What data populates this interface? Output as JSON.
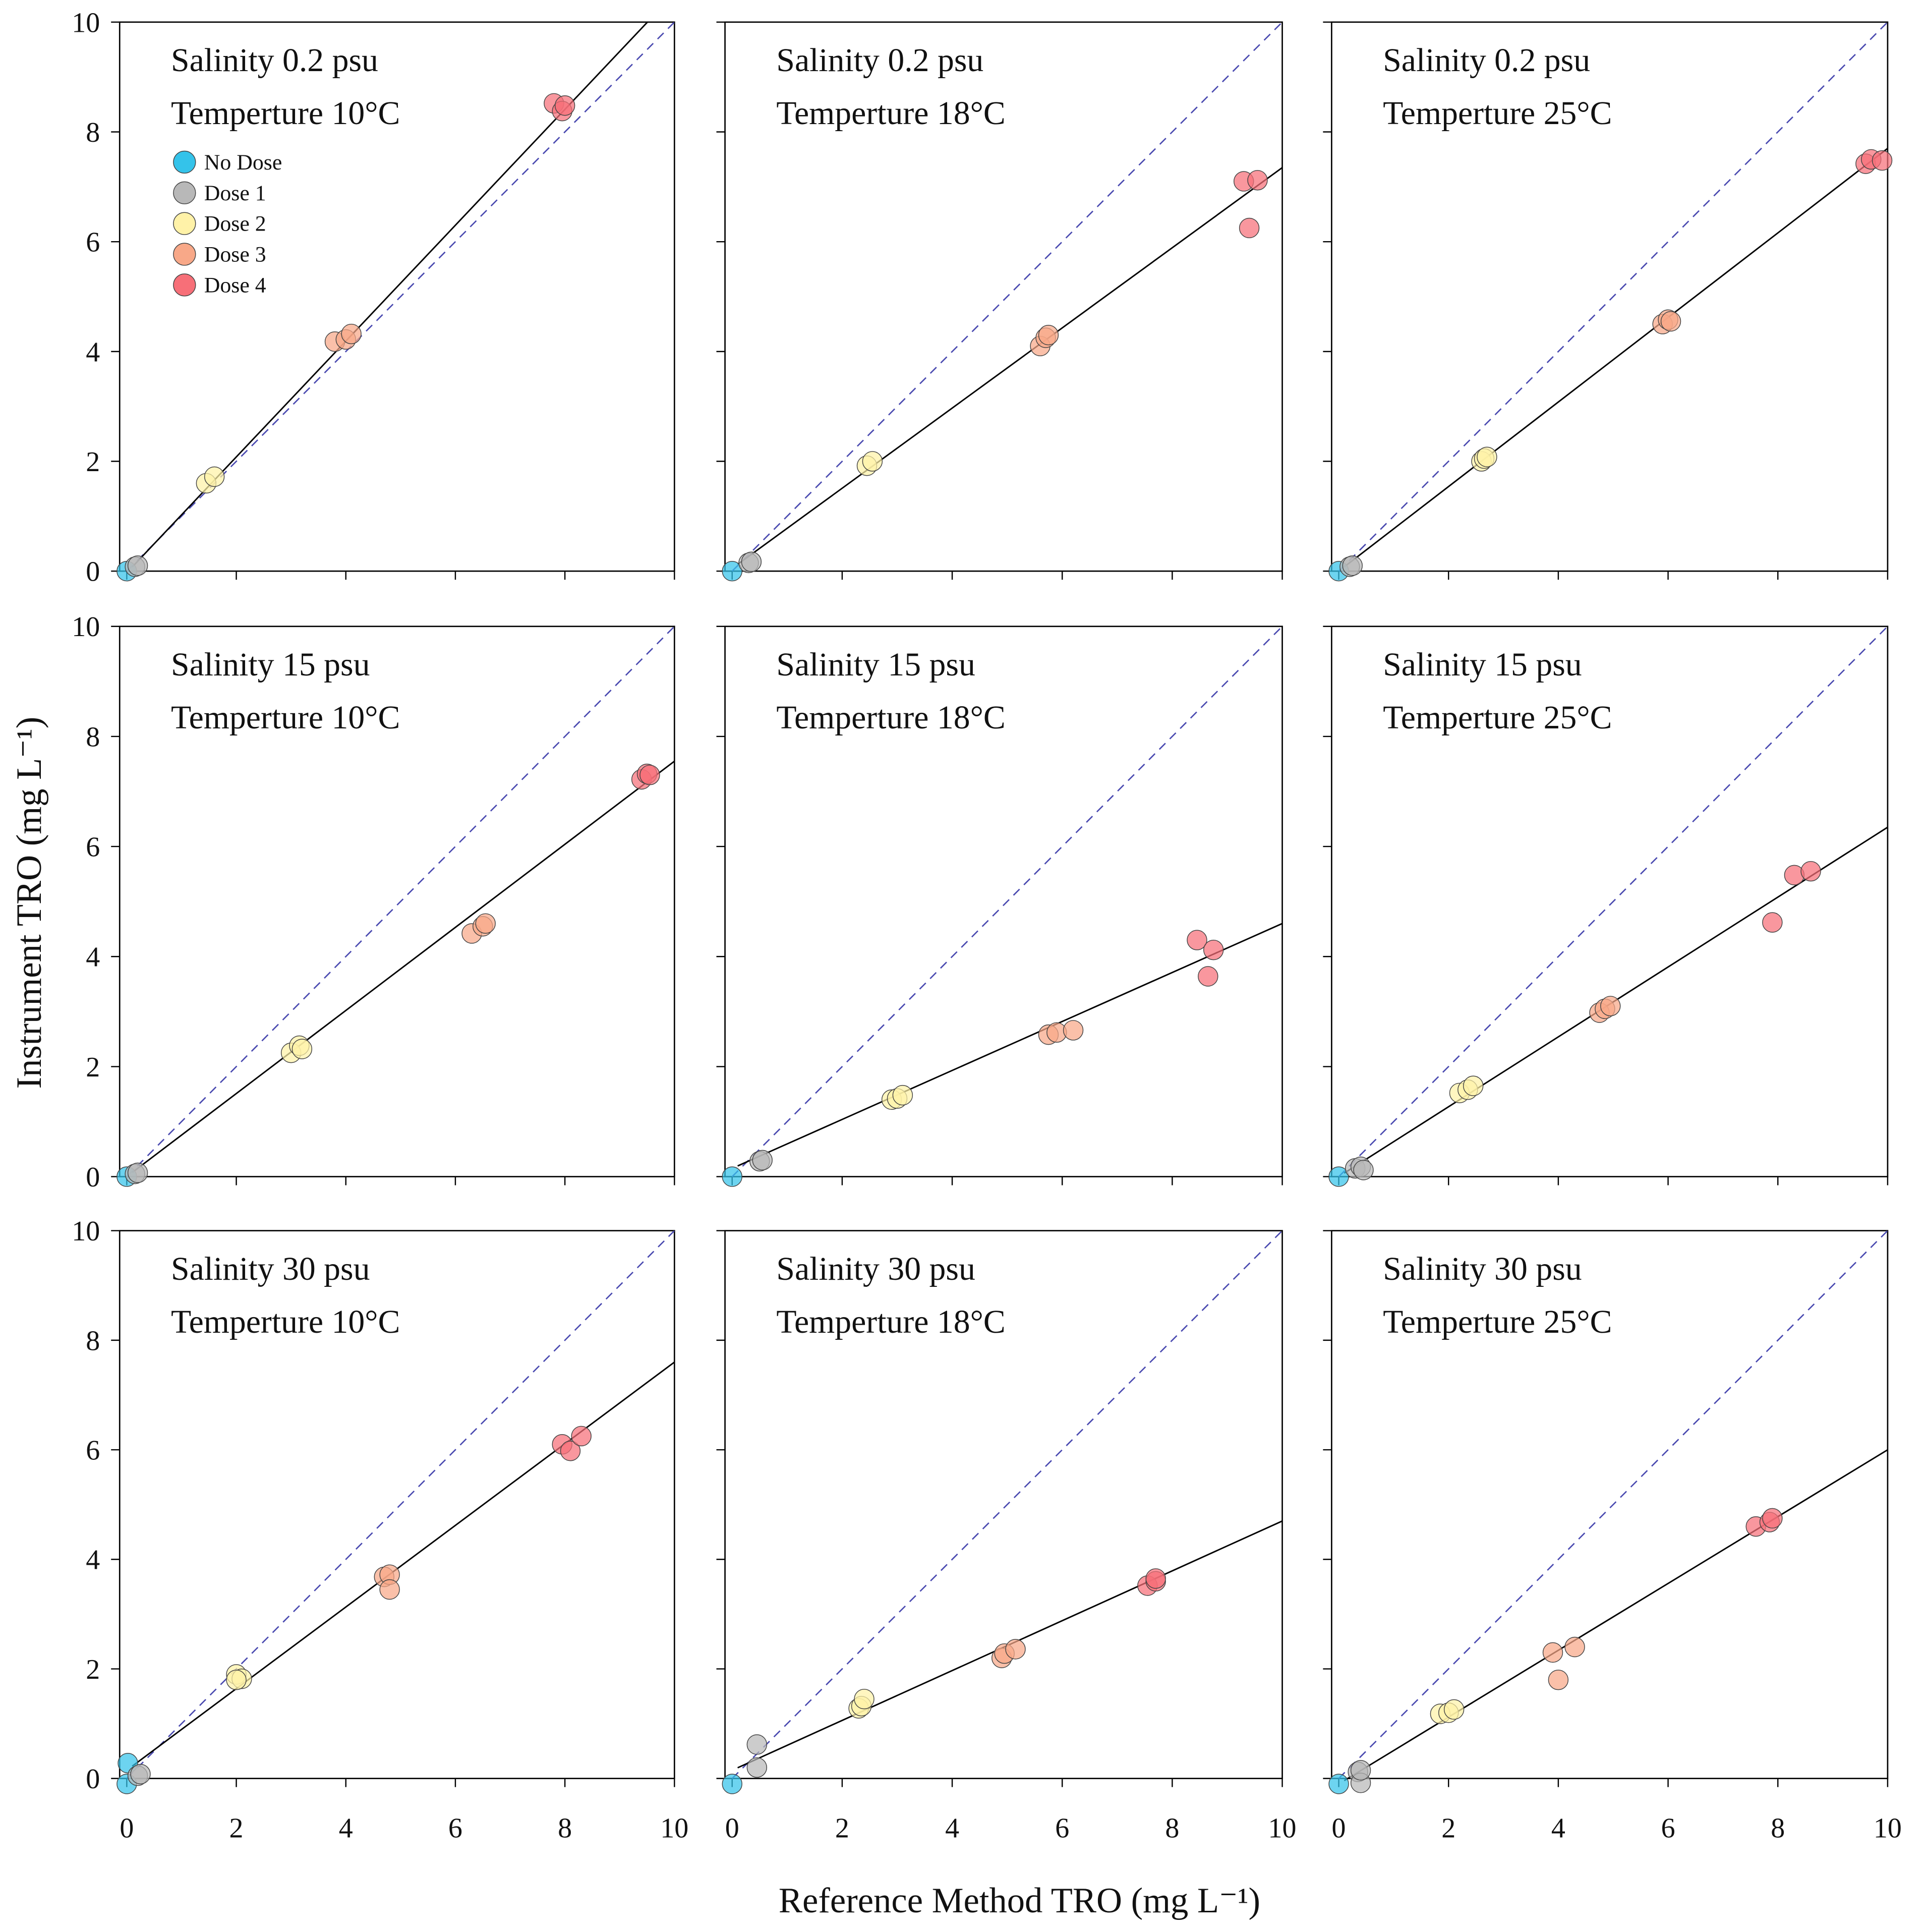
{
  "chart_data": {
    "type": "scatter",
    "xlabel": "Reference Method TRO (mg L⁻¹)",
    "ylabel": "Instrument TRO (mg L⁻¹)",
    "xlim": [
      0,
      10
    ],
    "ylim": [
      0,
      10
    ],
    "xticks": [
      "0",
      "2",
      "4",
      "6",
      "8",
      "10"
    ],
    "yticks": [
      "0",
      "2",
      "4",
      "6",
      "8",
      "10"
    ],
    "grid": false,
    "legend_placement": "top-left of first panel",
    "legend": [
      {
        "key": "nodose",
        "label": "No Dose",
        "color": "#34c3ea"
      },
      {
        "key": "dose1",
        "label": "Dose 1",
        "color": "#b8b8b8"
      },
      {
        "key": "dose2",
        "label": "Dose 2",
        "color": "#fff2a8"
      },
      {
        "key": "dose3",
        "label": "Dose 3",
        "color": "#f8a888"
      },
      {
        "key": "dose4",
        "label": "Dose 4",
        "color": "#f76f78"
      }
    ],
    "reference_line": {
      "style": "dashed",
      "slope": 1,
      "intercept": 0,
      "color": "#4a4ab0"
    },
    "panels": [
      {
        "salinity": "Salinity 0.2 psu",
        "temperature": "Temperture 10°C",
        "fit": {
          "slope": 1.055,
          "intercept": -0.03
        },
        "points": {
          "nodose": [
            [
              0,
              0
            ]
          ],
          "dose1": [
            [
              0.15,
              0.08
            ],
            [
              0.2,
              0.1
            ]
          ],
          "dose2": [
            [
              1.45,
              1.6
            ],
            [
              1.6,
              1.72
            ]
          ],
          "dose3": [
            [
              3.8,
              4.18
            ],
            [
              4.0,
              4.22
            ],
            [
              4.1,
              4.32
            ]
          ],
          "dose4": [
            [
              7.8,
              8.52
            ],
            [
              7.95,
              8.38
            ],
            [
              8.0,
              8.48
            ]
          ]
        }
      },
      {
        "salinity": "Salinity 0.2 psu",
        "temperature": "Temperture 18°C",
        "fit": {
          "slope": 0.73,
          "intercept": 0.05
        },
        "points": {
          "nodose": [
            [
              0,
              0
            ]
          ],
          "dose1": [
            [
              0.3,
              0.15
            ],
            [
              0.35,
              0.17
            ]
          ],
          "dose2": [
            [
              2.45,
              1.92
            ],
            [
              2.55,
              2.0
            ]
          ],
          "dose3": [
            [
              5.6,
              4.1
            ],
            [
              5.7,
              4.25
            ],
            [
              5.75,
              4.3
            ]
          ],
          "dose4": [
            [
              9.3,
              7.1
            ],
            [
              9.55,
              7.12
            ],
            [
              9.4,
              6.25
            ]
          ]
        }
      },
      {
        "salinity": "Salinity 0.2 psu",
        "temperature": "Temperture 25°C",
        "fit": {
          "slope": 0.77,
          "intercept": 0.0
        },
        "points": {
          "nodose": [
            [
              0,
              0
            ]
          ],
          "dose1": [
            [
              0.2,
              0.08
            ],
            [
              0.25,
              0.1
            ]
          ],
          "dose2": [
            [
              2.6,
              2.0
            ],
            [
              2.65,
              2.05
            ],
            [
              2.7,
              2.08
            ]
          ],
          "dose3": [
            [
              5.9,
              4.5
            ],
            [
              6.0,
              4.58
            ],
            [
              6.05,
              4.55
            ]
          ],
          "dose4": [
            [
              9.6,
              7.42
            ],
            [
              9.7,
              7.5
            ],
            [
              9.9,
              7.48
            ]
          ]
        }
      },
      {
        "salinity": "Salinity 15 psu",
        "temperature": "Temperture 10°C",
        "fit": {
          "slope": 0.755,
          "intercept": 0.0
        },
        "points": {
          "nodose": [
            [
              0,
              0
            ]
          ],
          "dose1": [
            [
              0.15,
              0.05
            ],
            [
              0.2,
              0.07
            ]
          ],
          "dose2": [
            [
              3.0,
              2.25
            ],
            [
              3.15,
              2.38
            ],
            [
              3.2,
              2.32
            ]
          ],
          "dose3": [
            [
              6.3,
              4.42
            ],
            [
              6.5,
              4.55
            ],
            [
              6.55,
              4.6
            ]
          ],
          "dose4": [
            [
              9.4,
              7.22
            ],
            [
              9.5,
              7.32
            ],
            [
              9.55,
              7.3
            ]
          ]
        }
      },
      {
        "salinity": "Salinity 15 psu",
        "temperature": "Temperture 18°C",
        "fit": {
          "slope": 0.445,
          "intercept": 0.15
        },
        "points": {
          "nodose": [
            [
              0,
              0
            ]
          ],
          "dose1": [
            [
              0.5,
              0.28
            ],
            [
              0.55,
              0.3
            ]
          ],
          "dose2": [
            [
              2.9,
              1.4
            ],
            [
              3.0,
              1.42
            ],
            [
              3.1,
              1.48
            ]
          ],
          "dose3": [
            [
              5.75,
              2.58
            ],
            [
              5.9,
              2.62
            ],
            [
              6.2,
              2.66
            ]
          ],
          "dose4": [
            [
              8.45,
              4.3
            ],
            [
              8.75,
              4.12
            ],
            [
              8.65,
              3.64
            ]
          ]
        }
      },
      {
        "salinity": "Salinity 15 psu",
        "temperature": "Temperture 25°C",
        "fit": {
          "slope": 0.635,
          "intercept": 0.0
        },
        "points": {
          "nodose": [
            [
              0,
              0
            ]
          ],
          "dose1": [
            [
              0.3,
              0.15
            ],
            [
              0.4,
              0.18
            ],
            [
              0.45,
              0.12
            ]
          ],
          "dose2": [
            [
              2.2,
              1.52
            ],
            [
              2.35,
              1.58
            ],
            [
              2.45,
              1.65
            ]
          ],
          "dose3": [
            [
              4.75,
              2.98
            ],
            [
              4.85,
              3.05
            ],
            [
              4.95,
              3.1
            ]
          ],
          "dose4": [
            [
              7.9,
              4.62
            ],
            [
              8.3,
              5.48
            ],
            [
              8.6,
              5.55
            ]
          ]
        }
      },
      {
        "salinity": "Salinity 30 psu",
        "temperature": "Temperture 10°C",
        "fit": {
          "slope": 0.745,
          "intercept": 0.15
        },
        "points": {
          "nodose": [
            [
              0,
              -0.1
            ],
            [
              0.02,
              0.28
            ]
          ],
          "dose1": [
            [
              0.2,
              0.05
            ],
            [
              0.25,
              0.08
            ]
          ],
          "dose2": [
            [
              2.0,
              1.9
            ],
            [
              2.1,
              1.82
            ],
            [
              2.0,
              1.8
            ]
          ],
          "dose3": [
            [
              4.7,
              3.68
            ],
            [
              4.8,
              3.72
            ],
            [
              4.8,
              3.45
            ]
          ],
          "dose4": [
            [
              7.95,
              6.1
            ],
            [
              8.1,
              5.98
            ],
            [
              8.3,
              6.25
            ]
          ]
        }
      },
      {
        "salinity": "Salinity 30 psu",
        "temperature": "Temperture 18°C",
        "fit": {
          "slope": 0.455,
          "intercept": 0.15
        },
        "points": {
          "nodose": [
            [
              0,
              -0.1
            ]
          ],
          "dose1": [
            [
              0.45,
              0.62
            ],
            [
              0.45,
              0.2
            ]
          ],
          "dose2": [
            [
              2.3,
              1.28
            ],
            [
              2.35,
              1.32
            ],
            [
              2.4,
              1.45
            ]
          ],
          "dose3": [
            [
              4.9,
              2.2
            ],
            [
              4.95,
              2.28
            ],
            [
              5.15,
              2.36
            ]
          ],
          "dose4": [
            [
              7.55,
              3.52
            ],
            [
              7.7,
              3.6
            ],
            [
              7.7,
              3.65
            ]
          ]
        }
      },
      {
        "salinity": "Salinity 30 psu",
        "temperature": "Temperture 25°C",
        "fit": {
          "slope": 0.61,
          "intercept": -0.1
        },
        "points": {
          "nodose": [
            [
              0,
              -0.1
            ]
          ],
          "dose1": [
            [
              0.35,
              0.12
            ],
            [
              0.4,
              -0.08
            ],
            [
              0.4,
              0.15
            ]
          ],
          "dose2": [
            [
              1.85,
              1.18
            ],
            [
              2.0,
              1.2
            ],
            [
              2.1,
              1.26
            ]
          ],
          "dose3": [
            [
              3.9,
              2.3
            ],
            [
              4.3,
              2.4
            ],
            [
              4.0,
              1.8
            ]
          ],
          "dose4": [
            [
              7.6,
              4.6
            ],
            [
              7.85,
              4.68
            ],
            [
              7.9,
              4.75
            ]
          ]
        }
      }
    ]
  }
}
